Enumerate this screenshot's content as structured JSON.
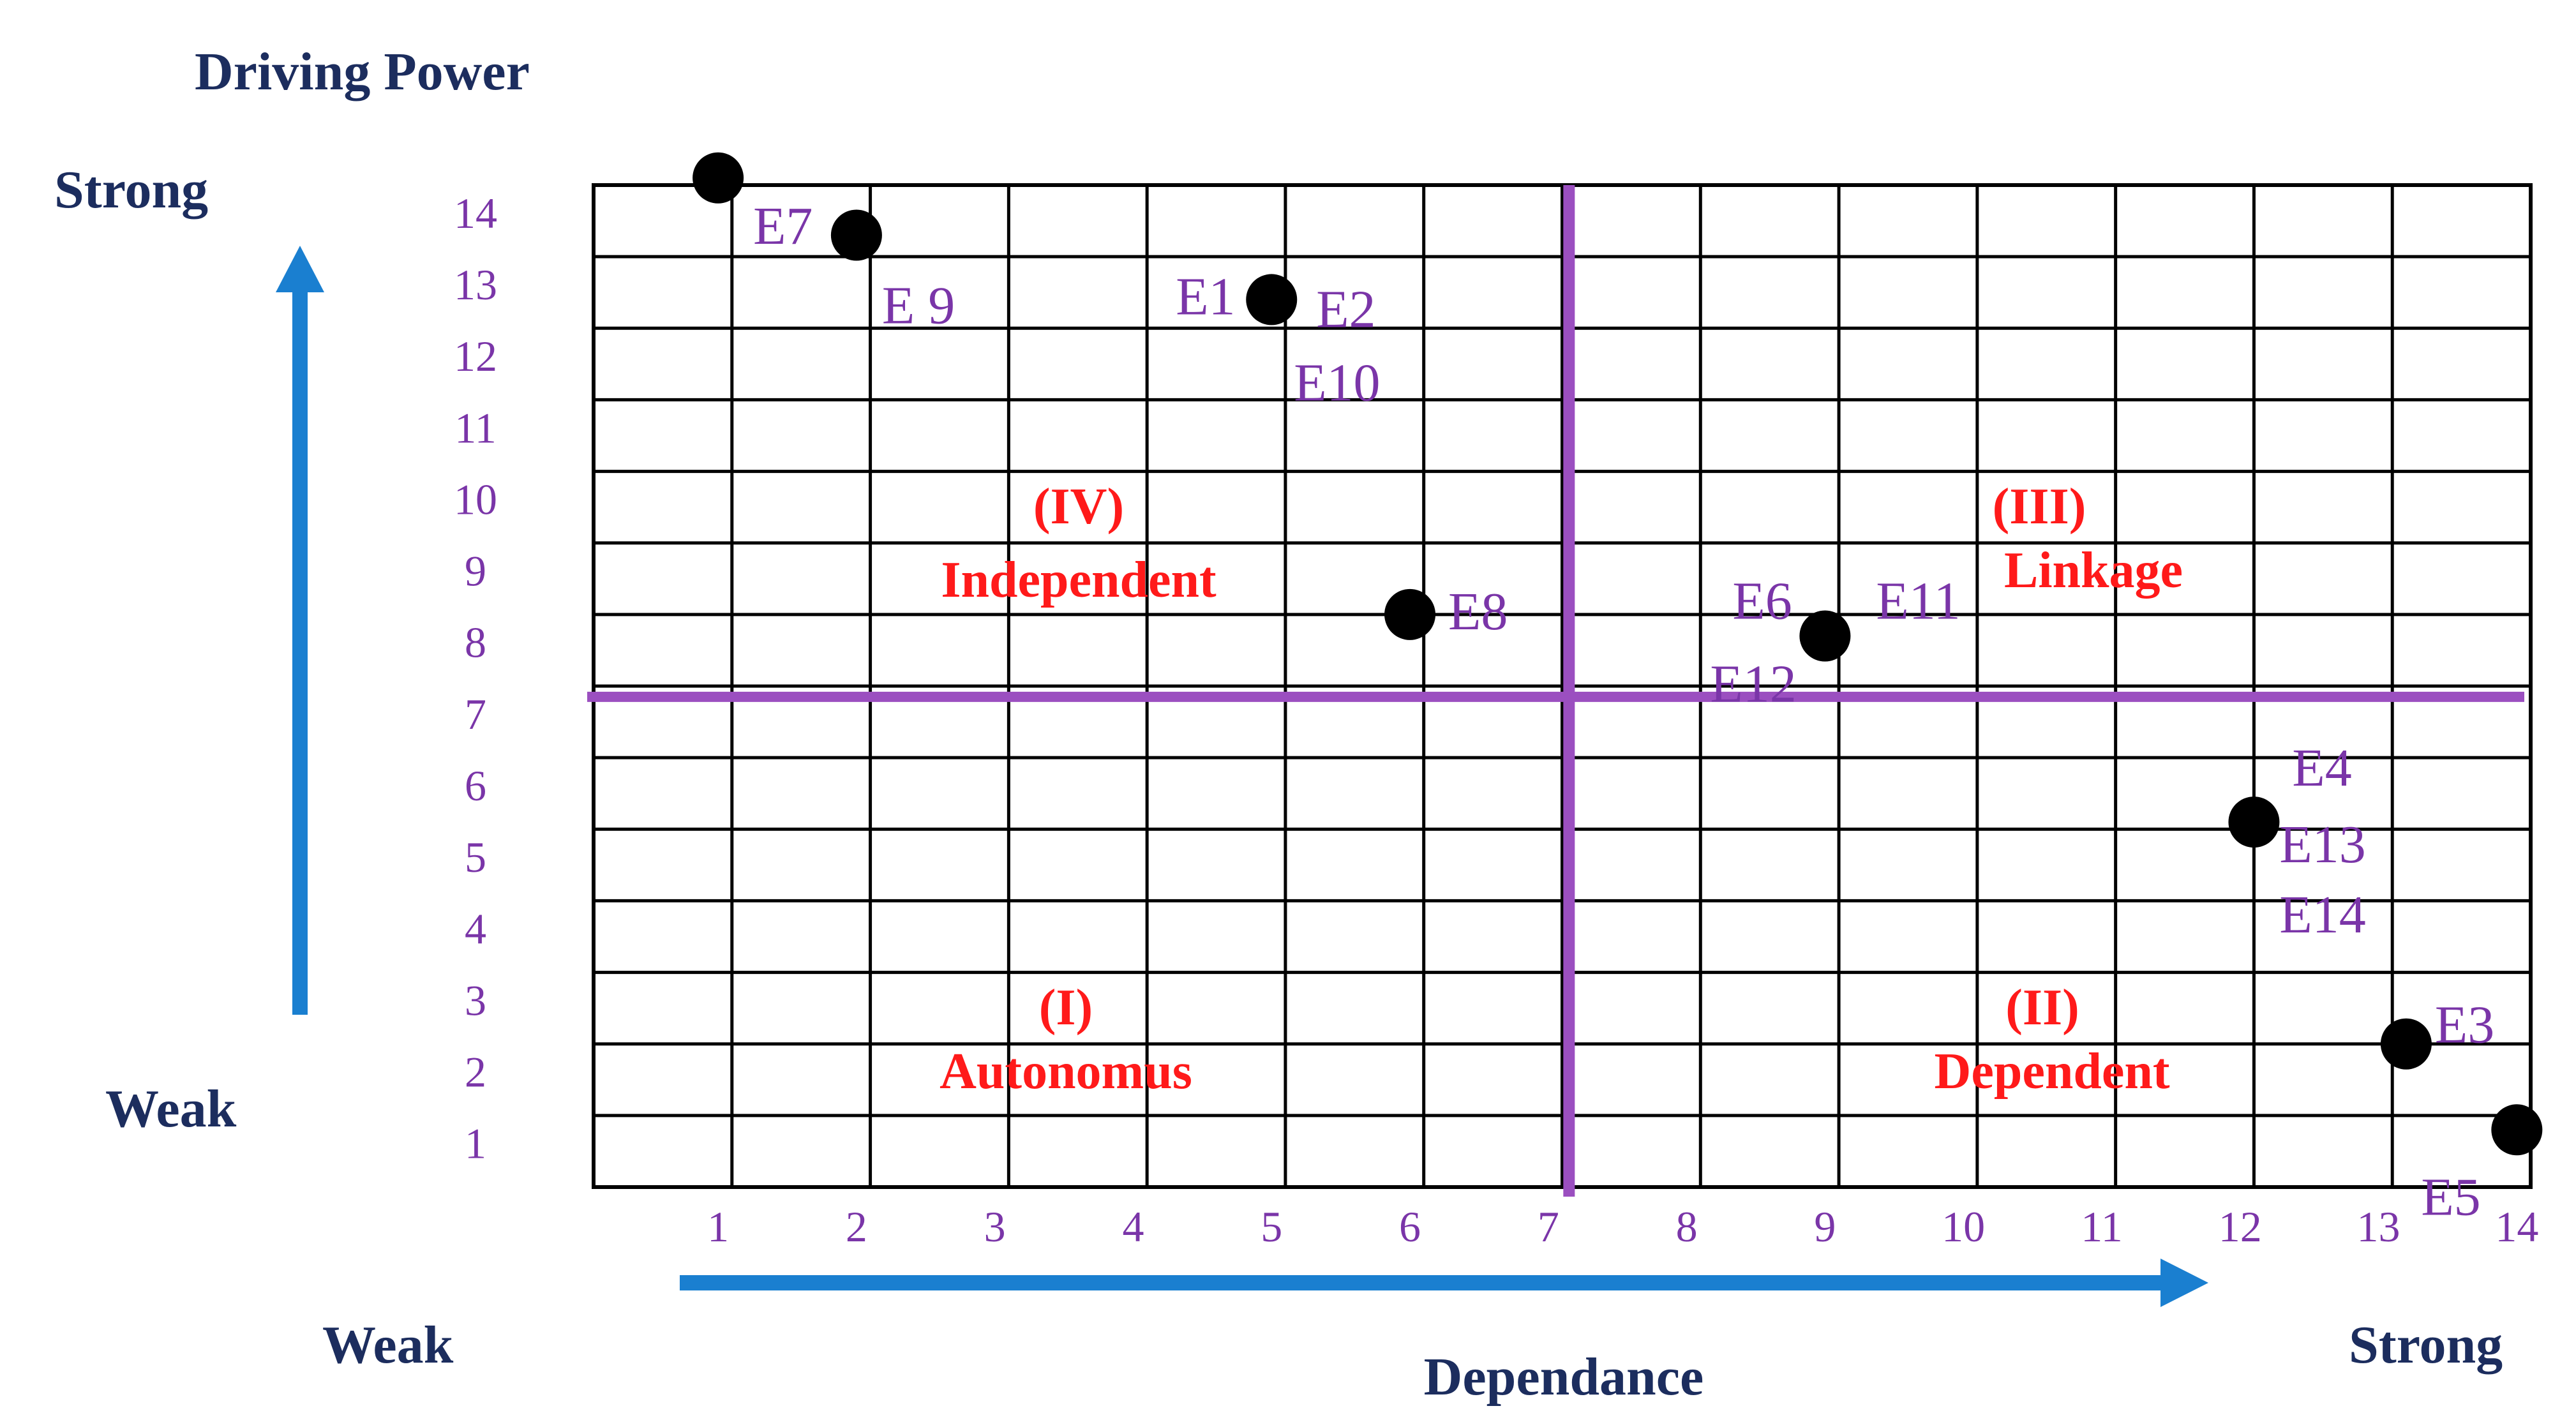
{
  "chart_data": {
    "type": "scatter",
    "title": "Driving Power",
    "ylabel": "Driving Power",
    "xlabel": "Dependance",
    "y_strong_label": "Strong",
    "y_weak_label": "Weak",
    "x_weak_label": "Weak",
    "x_strong_label": "Strong",
    "xlim": [
      0,
      14
    ],
    "ylim": [
      0,
      14
    ],
    "x_ticks": [
      "1",
      "2",
      "3",
      "4",
      "5",
      "6",
      "7",
      "8",
      "9",
      "10",
      "11",
      "12",
      "13",
      "14"
    ],
    "y_ticks": [
      "1",
      "2",
      "3",
      "4",
      "5",
      "6",
      "7",
      "8",
      "9",
      "10",
      "11",
      "12",
      "13",
      "14"
    ],
    "grid": true,
    "divider_x": 7.15,
    "divider_y": 7.25,
    "points": [
      {
        "x": 1,
        "y": 14.5,
        "labels": [
          "E7"
        ]
      },
      {
        "x": 2,
        "y": 13.7,
        "labels": [
          "E 9"
        ]
      },
      {
        "x": 5,
        "y": 12.8,
        "labels": [
          "E1",
          "E2",
          "E10"
        ]
      },
      {
        "x": 6,
        "y": 8.4,
        "labels": [
          "E8"
        ]
      },
      {
        "x": 9,
        "y": 8.1,
        "labels": [
          "E6",
          "E11",
          "E12"
        ]
      },
      {
        "x": 12.1,
        "y": 5.5,
        "labels": [
          "E4",
          "E13",
          "E14"
        ]
      },
      {
        "x": 13.2,
        "y": 2.4,
        "labels": [
          "E3"
        ]
      },
      {
        "x": 14,
        "y": 1.2,
        "labels": [
          "E5"
        ]
      }
    ],
    "quadrants": [
      {
        "numeral": "(IV)",
        "name": "Independent"
      },
      {
        "numeral": "(III)",
        "name": "Linkage"
      },
      {
        "numeral": "(I)",
        "name": "Autonomus"
      },
      {
        "numeral": "(II)",
        "name": "Dependent"
      }
    ],
    "colors": {
      "divider": "#9b4fc0",
      "point": "#000000",
      "point_label": "#7a35a8",
      "tick": "#7a35a8",
      "quadrant": "#ff1a1a",
      "axis_title": "#1c2d5e",
      "arrow": "#1a7fd0"
    }
  }
}
